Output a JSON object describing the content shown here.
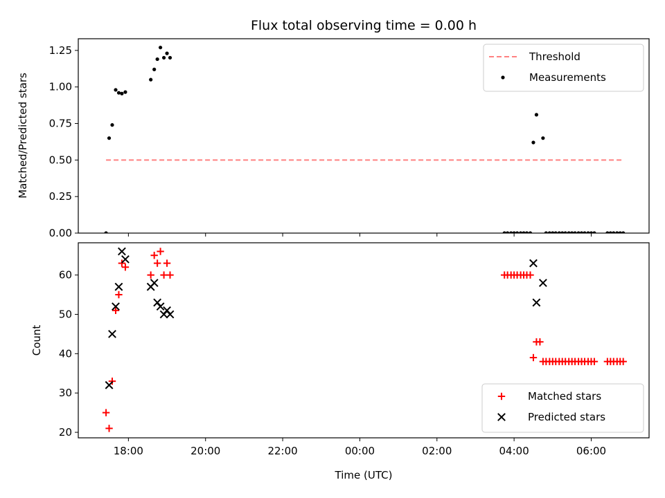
{
  "chart_data": [
    {
      "type": "scatter",
      "title": "Flux total observing time = 0.00 h",
      "ylabel": "Matched/Predicted stars",
      "ylim": [
        0,
        1.33
      ],
      "yticks": [
        "0.00",
        "0.25",
        "0.50",
        "0.75",
        "1.00",
        "1.25"
      ],
      "ytick_values": [
        0,
        0.25,
        0.5,
        0.75,
        1.0,
        1.25
      ],
      "grid": false,
      "legend": "top-right",
      "threshold": {
        "name": "Threshold",
        "y": 0.5,
        "x_start": 17.42,
        "x_end": 30.83,
        "color": "#ff8080",
        "style": "dashed"
      },
      "series": [
        {
          "name": "Measurements",
          "color": "#000000",
          "marker": "dot",
          "points": [
            [
              17.42,
              0.0
            ],
            [
              17.5,
              0.65
            ],
            [
              17.58,
              0.74
            ],
            [
              17.67,
              0.98
            ],
            [
              17.75,
              0.96
            ],
            [
              17.83,
              0.955
            ],
            [
              17.92,
              0.965
            ],
            [
              18.58,
              1.05
            ],
            [
              18.67,
              1.12
            ],
            [
              18.75,
              1.19
            ],
            [
              18.83,
              1.27
            ],
            [
              18.92,
              1.2
            ],
            [
              19.0,
              1.23
            ],
            [
              19.08,
              1.2
            ],
            [
              27.75,
              0.0
            ],
            [
              27.83,
              0.0
            ],
            [
              27.92,
              0.0
            ],
            [
              28.0,
              0.0
            ],
            [
              28.08,
              0.0
            ],
            [
              28.17,
              0.0
            ],
            [
              28.25,
              0.0
            ],
            [
              28.33,
              0.0
            ],
            [
              28.42,
              0.0
            ],
            [
              28.5,
              0.62
            ],
            [
              28.58,
              0.81
            ],
            [
              28.75,
              0.65
            ],
            [
              28.83,
              0.0
            ],
            [
              28.92,
              0.0
            ],
            [
              29.0,
              0.0
            ],
            [
              29.08,
              0.0
            ],
            [
              29.17,
              0.0
            ],
            [
              29.25,
              0.0
            ],
            [
              29.33,
              0.0
            ],
            [
              29.42,
              0.0
            ],
            [
              29.5,
              0.0
            ],
            [
              29.58,
              0.0
            ],
            [
              29.67,
              0.0
            ],
            [
              29.75,
              0.0
            ],
            [
              29.83,
              0.0
            ],
            [
              29.92,
              0.0
            ],
            [
              30.0,
              0.0
            ],
            [
              30.08,
              0.0
            ],
            [
              30.42,
              0.0
            ],
            [
              30.5,
              0.0
            ],
            [
              30.58,
              0.0
            ],
            [
              30.67,
              0.0
            ],
            [
              30.75,
              0.0
            ],
            [
              30.83,
              0.0
            ]
          ]
        }
      ]
    },
    {
      "type": "scatter",
      "xlabel": "Time (UTC)",
      "ylabel": "Count",
      "xlim": [
        16.7,
        31.5
      ],
      "ylim": [
        18.6,
        68.2
      ],
      "xticks": [
        "18:00",
        "20:00",
        "22:00",
        "00:00",
        "02:00",
        "04:00",
        "06:00"
      ],
      "xtick_values": [
        18,
        20,
        22,
        24,
        26,
        28,
        30
      ],
      "yticks": [
        "20",
        "30",
        "40",
        "50",
        "60"
      ],
      "ytick_values": [
        20,
        30,
        40,
        50,
        60
      ],
      "grid": false,
      "legend": "bottom-right",
      "series": [
        {
          "name": "Matched stars",
          "color": "#ff0000",
          "marker": "plus",
          "points": [
            [
              17.42,
              25
            ],
            [
              17.5,
              21
            ],
            [
              17.58,
              33
            ],
            [
              17.67,
              51
            ],
            [
              17.75,
              55
            ],
            [
              17.83,
              63
            ],
            [
              17.92,
              62
            ],
            [
              18.58,
              60
            ],
            [
              18.67,
              65
            ],
            [
              18.75,
              63
            ],
            [
              18.83,
              66
            ],
            [
              18.92,
              60
            ],
            [
              19.0,
              63
            ],
            [
              19.08,
              60
            ],
            [
              27.75,
              60
            ],
            [
              27.83,
              60
            ],
            [
              27.92,
              60
            ],
            [
              28.0,
              60
            ],
            [
              28.08,
              60
            ],
            [
              28.17,
              60
            ],
            [
              28.25,
              60
            ],
            [
              28.33,
              60
            ],
            [
              28.42,
              60
            ],
            [
              28.5,
              39
            ],
            [
              28.58,
              43
            ],
            [
              28.67,
              43
            ],
            [
              28.75,
              38
            ],
            [
              28.83,
              38
            ],
            [
              28.92,
              38
            ],
            [
              29.0,
              38
            ],
            [
              29.08,
              38
            ],
            [
              29.17,
              38
            ],
            [
              29.25,
              38
            ],
            [
              29.33,
              38
            ],
            [
              29.42,
              38
            ],
            [
              29.5,
              38
            ],
            [
              29.58,
              38
            ],
            [
              29.67,
              38
            ],
            [
              29.75,
              38
            ],
            [
              29.83,
              38
            ],
            [
              29.92,
              38
            ],
            [
              30.0,
              38
            ],
            [
              30.08,
              38
            ],
            [
              30.42,
              38
            ],
            [
              30.5,
              38
            ],
            [
              30.58,
              38
            ],
            [
              30.67,
              38
            ],
            [
              30.75,
              38
            ],
            [
              30.83,
              38
            ]
          ]
        },
        {
          "name": "Predicted stars",
          "color": "#000000",
          "marker": "x",
          "points": [
            [
              17.5,
              32
            ],
            [
              17.58,
              45
            ],
            [
              17.67,
              52
            ],
            [
              17.75,
              57
            ],
            [
              17.83,
              66
            ],
            [
              17.92,
              64
            ],
            [
              18.58,
              57
            ],
            [
              18.67,
              58
            ],
            [
              18.75,
              53
            ],
            [
              18.83,
              52
            ],
            [
              18.92,
              50
            ],
            [
              19.0,
              51
            ],
            [
              19.08,
              50
            ],
            [
              28.5,
              63
            ],
            [
              28.58,
              53
            ],
            [
              28.75,
              58
            ]
          ]
        }
      ]
    }
  ]
}
